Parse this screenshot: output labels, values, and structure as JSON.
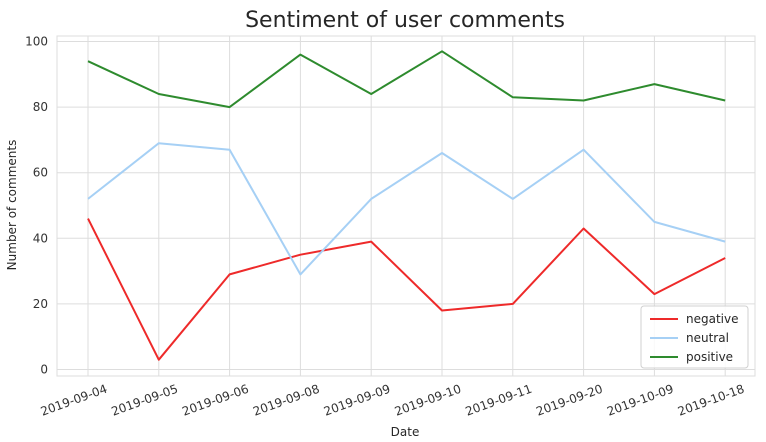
{
  "chart_data": {
    "type": "line",
    "title": "Sentiment of user comments",
    "xlabel": "Date",
    "ylabel": "Number of comments",
    "categories": [
      "2019-09-04",
      "2019-09-05",
      "2019-09-06",
      "2019-09-08",
      "2019-09-09",
      "2019-09-10",
      "2019-09-11",
      "2019-09-20",
      "2019-10-09",
      "2019-10-18"
    ],
    "ylim": [
      0,
      100
    ],
    "yticks": [
      0,
      20,
      40,
      60,
      80,
      100
    ],
    "grid": true,
    "legend_position": "bottom-right",
    "series": [
      {
        "name": "negative",
        "color": "#ee2a2a",
        "values": [
          46,
          3,
          29,
          35,
          39,
          18,
          20,
          43,
          23,
          34
        ]
      },
      {
        "name": "neutral",
        "color": "#a6d0f5",
        "values": [
          52,
          69,
          67,
          29,
          52,
          66,
          52,
          67,
          45,
          39
        ]
      },
      {
        "name": "positive",
        "color": "#2e8b2e",
        "values": [
          94,
          84,
          80,
          96,
          84,
          97,
          83,
          82,
          87,
          82
        ]
      }
    ]
  }
}
